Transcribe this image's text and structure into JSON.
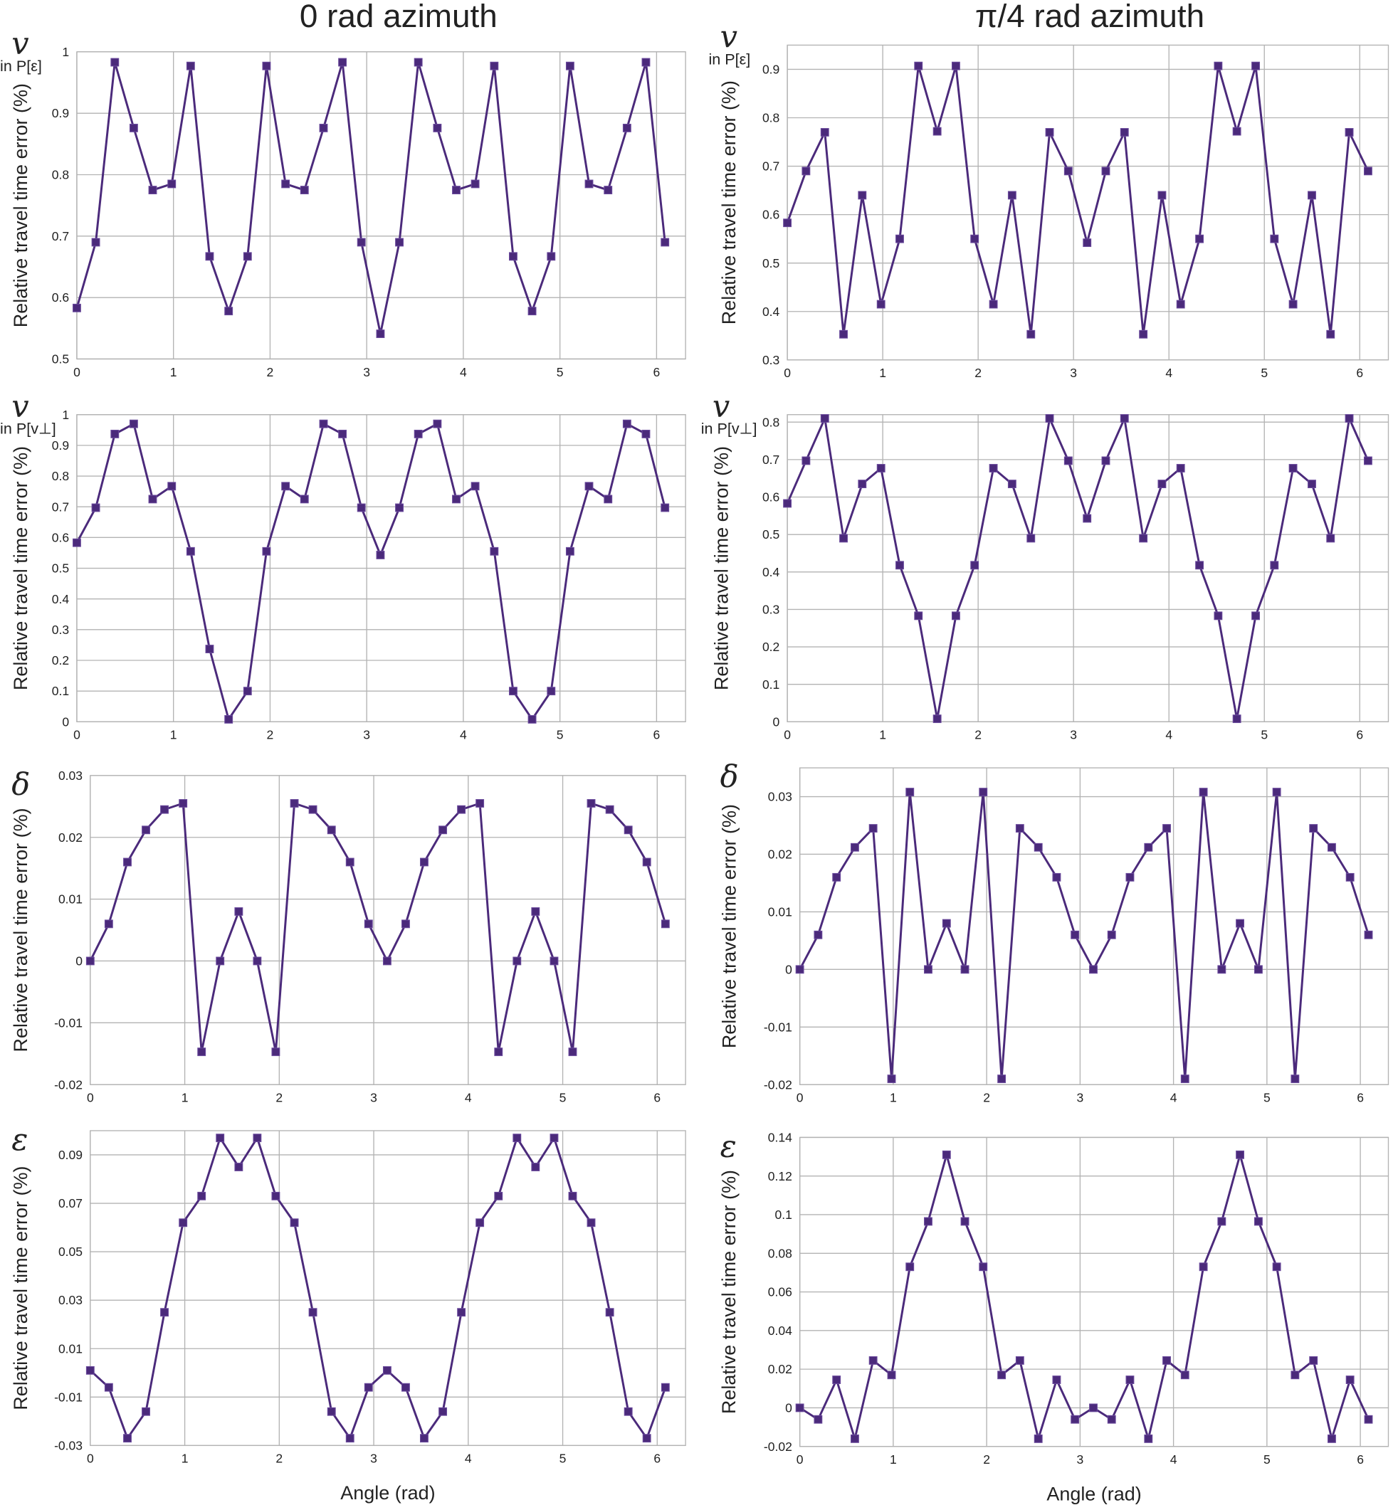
{
  "columns": [
    "0 rad azimuth",
    "π/4 rad azimuth"
  ],
  "chart_data": [
    {
      "type": "line",
      "panel_label": "v",
      "panel_sublabel": "in P[ε]",
      "y_label": "Relative travel time error (%)",
      "color": "#4b2a7b",
      "x": [
        0,
        0.196,
        0.393,
        0.589,
        0.785,
        0.982,
        1.178,
        1.374,
        1.571,
        1.767,
        1.963,
        2.16,
        2.356,
        2.553,
        2.749,
        2.945,
        3.142,
        3.338,
        3.534,
        3.731,
        3.927,
        4.123,
        4.32,
        4.516,
        4.712,
        4.909,
        5.105,
        5.301,
        5.498,
        5.694,
        5.89,
        6.087
      ],
      "values": [
        0.583,
        0.69,
        0.983,
        0.876,
        0.775,
        0.785,
        0.977,
        0.667,
        0.578,
        0.667,
        0.977,
        0.785,
        0.775,
        0.876,
        0.983,
        0.69,
        0.541,
        0.69,
        0.983,
        0.876,
        0.775,
        0.785,
        0.977,
        0.667,
        0.578,
        0.667,
        0.977,
        0.785,
        0.775,
        0.876,
        0.983,
        0.69
      ],
      "xlim": [
        0,
        6.3
      ],
      "xticks": [
        0,
        1,
        2,
        3,
        4,
        5,
        6
      ],
      "ylim": [
        0.5,
        1
      ],
      "yticks": [
        0.5,
        0.6,
        0.7,
        0.8,
        0.9,
        1
      ],
      "grid": true
    },
    {
      "type": "line",
      "panel_label": "v",
      "panel_sublabel": "in P[ε]",
      "y_label": "Relative travel time error (%)",
      "color": "#4b2a7b",
      "x": [
        0,
        0.196,
        0.393,
        0.589,
        0.785,
        0.982,
        1.178,
        1.374,
        1.571,
        1.767,
        1.963,
        2.16,
        2.356,
        2.553,
        2.749,
        2.945,
        3.142,
        3.338,
        3.534,
        3.731,
        3.927,
        4.123,
        4.32,
        4.516,
        4.712,
        4.909,
        5.105,
        5.301,
        5.498,
        5.694,
        5.89,
        6.087
      ],
      "values": [
        0.583,
        0.69,
        0.77,
        0.353,
        0.64,
        0.415,
        0.55,
        0.907,
        0.772,
        0.907,
        0.55,
        0.415,
        0.64,
        0.353,
        0.77,
        0.69,
        0.542,
        0.69,
        0.77,
        0.353,
        0.64,
        0.415,
        0.55,
        0.907,
        0.772,
        0.907,
        0.55,
        0.415,
        0.64,
        0.353,
        0.77,
        0.69
      ],
      "xlim": [
        0,
        6.3
      ],
      "xticks": [
        0,
        1,
        2,
        3,
        4,
        5,
        6
      ],
      "ylim": [
        0.3,
        0.95
      ],
      "yticks": [
        0.3,
        0.4,
        0.5,
        0.6,
        0.7,
        0.8,
        0.9
      ],
      "grid": true
    },
    {
      "type": "line",
      "panel_label": "v",
      "panel_sublabel": "in P[v⊥]",
      "y_label": "Relative travel time error (%)",
      "color": "#4b2a7b",
      "x": [
        0,
        0.196,
        0.393,
        0.589,
        0.785,
        0.982,
        1.178,
        1.374,
        1.571,
        1.767,
        1.963,
        2.16,
        2.356,
        2.553,
        2.749,
        2.945,
        3.142,
        3.338,
        3.534,
        3.731,
        3.927,
        4.123,
        4.32,
        4.516,
        4.712,
        4.909,
        5.105,
        5.301,
        5.498,
        5.694,
        5.89,
        6.087
      ],
      "values": [
        0.583,
        0.697,
        0.937,
        0.97,
        0.725,
        0.767,
        0.555,
        0.237,
        0.008,
        0.1,
        0.555,
        0.767,
        0.725,
        0.97,
        0.937,
        0.697,
        0.543,
        0.697,
        0.937,
        0.97,
        0.725,
        0.767,
        0.555,
        0.1,
        0.008,
        0.1,
        0.555,
        0.767,
        0.725,
        0.97,
        0.937,
        0.697
      ],
      "xlim": [
        0,
        6.3
      ],
      "xticks": [
        0,
        1,
        2,
        3,
        4,
        5,
        6
      ],
      "ylim": [
        0,
        1
      ],
      "yticks": [
        0,
        0.1,
        0.2,
        0.3,
        0.4,
        0.5,
        0.6,
        0.7,
        0.8,
        0.9,
        1
      ],
      "grid": true
    },
    {
      "type": "line",
      "panel_label": "v",
      "panel_sublabel": "in P[v⊥]",
      "y_label": "Relative travel time error (%)",
      "color": "#4b2a7b",
      "x": [
        0,
        0.196,
        0.393,
        0.589,
        0.785,
        0.982,
        1.178,
        1.374,
        1.571,
        1.767,
        1.963,
        2.16,
        2.356,
        2.553,
        2.749,
        2.945,
        3.142,
        3.338,
        3.534,
        3.731,
        3.927,
        4.123,
        4.32,
        4.516,
        4.712,
        4.909,
        5.105,
        5.301,
        5.498,
        5.694,
        5.89,
        6.087
      ],
      "values": [
        0.583,
        0.697,
        0.81,
        0.49,
        0.635,
        0.677,
        0.418,
        0.283,
        0.008,
        0.283,
        0.418,
        0.677,
        0.635,
        0.49,
        0.81,
        0.697,
        0.543,
        0.697,
        0.81,
        0.49,
        0.635,
        0.677,
        0.418,
        0.283,
        0.008,
        0.283,
        0.418,
        0.677,
        0.635,
        0.49,
        0.81,
        0.697
      ],
      "xlim": [
        0,
        6.3
      ],
      "xticks": [
        0,
        1,
        2,
        3,
        4,
        5,
        6
      ],
      "ylim": [
        0,
        0.82
      ],
      "yticks": [
        0,
        0.1,
        0.2,
        0.3,
        0.4,
        0.5,
        0.6,
        0.7,
        0.8
      ],
      "grid": true
    },
    {
      "type": "line",
      "panel_label": "δ",
      "y_label": "Relative travel time  error (%)",
      "color": "#4b2a7b",
      "x": [
        0,
        0.196,
        0.393,
        0.589,
        0.785,
        0.982,
        1.178,
        1.374,
        1.571,
        1.767,
        1.963,
        2.16,
        2.356,
        2.553,
        2.749,
        2.945,
        3.142,
        3.338,
        3.534,
        3.731,
        3.927,
        4.123,
        4.32,
        4.516,
        4.712,
        4.909,
        5.105,
        5.301,
        5.498,
        5.694,
        5.89,
        6.087
      ],
      "values": [
        0,
        0.006,
        0.016,
        0.0212,
        0.0245,
        0.0255,
        -0.0147,
        0,
        0.008,
        0,
        -0.0147,
        0.0255,
        0.0245,
        0.0212,
        0.016,
        0.006,
        0,
        0.006,
        0.016,
        0.0212,
        0.0245,
        0.0255,
        -0.0147,
        0,
        0.008,
        0,
        -0.0147,
        0.0255,
        0.0245,
        0.0212,
        0.016,
        0.006
      ],
      "xlim": [
        0,
        6.3
      ],
      "xticks": [
        0,
        1,
        2,
        3,
        4,
        5,
        6
      ],
      "ylim": [
        -0.02,
        0.03
      ],
      "yticks": [
        -0.02,
        -0.01,
        0,
        0.01,
        0.02,
        0.03
      ],
      "grid": true
    },
    {
      "type": "line",
      "panel_label": "δ",
      "y_label": "Relative travel time  error (%)",
      "color": "#4b2a7b",
      "x": [
        0,
        0.196,
        0.393,
        0.589,
        0.785,
        0.982,
        1.178,
        1.374,
        1.571,
        1.767,
        1.963,
        2.16,
        2.356,
        2.553,
        2.749,
        2.945,
        3.142,
        3.338,
        3.534,
        3.731,
        3.927,
        4.123,
        4.32,
        4.516,
        4.712,
        4.909,
        5.105,
        5.301,
        5.498,
        5.694,
        5.89,
        6.087
      ],
      "values": [
        0,
        0.006,
        0.016,
        0.0212,
        0.0245,
        -0.019,
        0.0308,
        0,
        0.008,
        0,
        0.0308,
        -0.019,
        0.0245,
        0.0212,
        0.016,
        0.006,
        0,
        0.006,
        0.016,
        0.0212,
        0.0245,
        -0.019,
        0.0308,
        0,
        0.008,
        0,
        0.0308,
        -0.019,
        0.0245,
        0.0212,
        0.016,
        0.006
      ],
      "xlim": [
        0,
        6.3
      ],
      "xticks": [
        0,
        1,
        2,
        3,
        4,
        5,
        6
      ],
      "ylim": [
        -0.02,
        0.035
      ],
      "yticks": [
        -0.02,
        -0.01,
        0,
        0.01,
        0.02,
        0.03
      ],
      "grid": true
    },
    {
      "type": "line",
      "panel_label": "ε",
      "y_label": "Relative travel time  error (%)",
      "x_label": "Angle (rad)",
      "color": "#4b2a7b",
      "x": [
        0,
        0.196,
        0.393,
        0.589,
        0.785,
        0.982,
        1.178,
        1.374,
        1.571,
        1.767,
        1.963,
        2.16,
        2.356,
        2.553,
        2.749,
        2.945,
        3.142,
        3.338,
        3.534,
        3.731,
        3.927,
        4.123,
        4.32,
        4.516,
        4.712,
        4.909,
        5.105,
        5.301,
        5.498,
        5.694,
        5.89,
        6.087
      ],
      "values": [
        0.001,
        -0.006,
        -0.027,
        -0.016,
        0.025,
        0.062,
        0.073,
        0.097,
        0.085,
        0.097,
        0.073,
        0.062,
        0.025,
        -0.016,
        -0.027,
        -0.006,
        0.001,
        -0.006,
        -0.027,
        -0.016,
        0.025,
        0.062,
        0.073,
        0.097,
        0.085,
        0.097,
        0.073,
        0.062,
        0.025,
        -0.016,
        -0.027,
        -0.006
      ],
      "xlim": [
        0,
        6.3
      ],
      "xticks": [
        0,
        1,
        2,
        3,
        4,
        5,
        6
      ],
      "ylim": [
        -0.03,
        0.1
      ],
      "yticks": [
        -0.03,
        -0.01,
        0.01,
        0.03,
        0.05,
        0.07,
        0.09
      ],
      "grid": true
    },
    {
      "type": "line",
      "panel_label": "ε",
      "y_label": "Relative travel time  error (%)",
      "x_label": "Angle (rad)",
      "color": "#4b2a7b",
      "x": [
        0,
        0.196,
        0.393,
        0.589,
        0.785,
        0.982,
        1.178,
        1.374,
        1.571,
        1.767,
        1.963,
        2.16,
        2.356,
        2.553,
        2.749,
        2.945,
        3.142,
        3.338,
        3.534,
        3.731,
        3.927,
        4.123,
        4.32,
        4.516,
        4.712,
        4.909,
        5.105,
        5.301,
        5.498,
        5.694,
        5.89,
        6.087
      ],
      "values": [
        0,
        -0.006,
        0.0145,
        -0.016,
        0.0245,
        0.017,
        0.073,
        0.0965,
        0.131,
        0.0965,
        0.073,
        0.017,
        0.0245,
        -0.016,
        0.0145,
        -0.006,
        0,
        -0.006,
        0.0145,
        -0.016,
        0.0245,
        0.017,
        0.073,
        0.0965,
        0.131,
        0.0965,
        0.073,
        0.017,
        0.0245,
        -0.016,
        0.0145,
        -0.006
      ],
      "xlim": [
        0,
        6.3
      ],
      "xticks": [
        0,
        1,
        2,
        3,
        4,
        5,
        6
      ],
      "ylim": [
        -0.02,
        0.14
      ],
      "yticks": [
        -0.02,
        0,
        0.02,
        0.04,
        0.06,
        0.08,
        0.1,
        0.12,
        0.14
      ],
      "grid": true
    }
  ]
}
